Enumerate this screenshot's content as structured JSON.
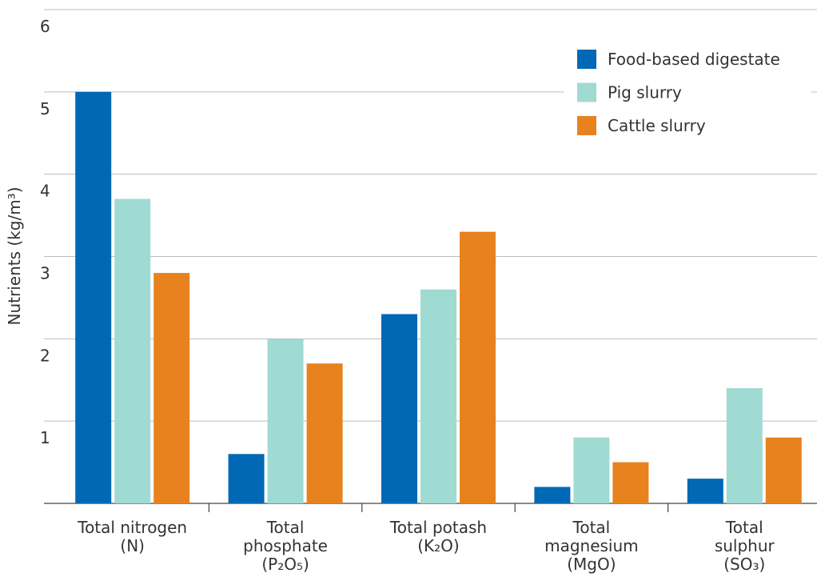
{
  "chart_data": {
    "type": "bar",
    "y_label": "Nutrients (kg/m³)",
    "categories": [
      "Total nitrogen\n(N)",
      "Total\nphosphate\n(P₂O₅)",
      "Total potash\n(K₂O)",
      "Total\nmagnesium\n(MgO)",
      "Total\nsulphur\n(SO₃)"
    ],
    "series": [
      {
        "name": "Food-based digestate",
        "color": "#0068b4",
        "values": [
          5.0,
          0.6,
          2.3,
          0.2,
          0.3
        ]
      },
      {
        "name": "Pig slurry",
        "color": "#9fdbd2",
        "values": [
          3.7,
          2.0,
          2.6,
          0.8,
          1.4
        ]
      },
      {
        "name": "Cattle slurry",
        "color": "#e8821e",
        "values": [
          2.8,
          1.7,
          3.3,
          0.5,
          0.8
        ]
      }
    ],
    "ylim": [
      0,
      6
    ],
    "yticks": [
      1,
      2,
      3,
      4,
      5,
      6
    ],
    "grid": true,
    "legend": "upper right"
  }
}
